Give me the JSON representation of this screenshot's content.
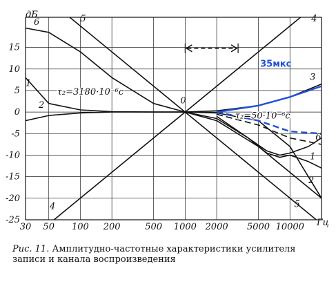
{
  "chart_data": {
    "type": "line",
    "x_scale": "log",
    "xlim": [
      30,
      20000
    ],
    "ylim": [
      -25,
      22
    ],
    "x_ticks": [
      30,
      50,
      100,
      200,
      500,
      1000,
      2000,
      5000,
      10000
    ],
    "x_tick_labels": [
      "30",
      "50",
      "100",
      "200",
      "500",
      "1000",
      "2000",
      "5000",
      "10000"
    ],
    "x_unit": "Гц",
    "y_ticks": [
      -25,
      -20,
      -15,
      -10,
      -5,
      0,
      5,
      10,
      15
    ],
    "y_tick_labels": [
      "-25",
      "-20",
      "-15",
      "-10",
      "-5",
      "0",
      "5",
      "10",
      "15"
    ],
    "y_unit": "дБ",
    "grid": true,
    "colors": {
      "axis": "#111111",
      "blue": "#1f4fd8"
    },
    "series": [
      {
        "name": "1",
        "color": "#111111",
        "dashed": false,
        "x": [
          1000,
          2000,
          4000,
          6000,
          8000,
          10000,
          15000,
          20000
        ],
        "y": [
          0,
          -1.5,
          -6,
          -9.5,
          -10.5,
          -10,
          -11.5,
          -13
        ]
      },
      {
        "name": "2",
        "color": "#111111",
        "dashed": false,
        "x": [
          30,
          50,
          100,
          200,
          500,
          1000,
          2000,
          5000,
          10000,
          15000,
          20000
        ],
        "y": [
          -2,
          -0.8,
          -0.2,
          0,
          0,
          0,
          -0.2,
          -2,
          -8,
          -15,
          -20
        ]
      },
      {
        "name": "3",
        "color": "#111111",
        "dashed": false,
        "x": [
          1000,
          2000,
          5000,
          10000,
          20000
        ],
        "y": [
          0,
          0.3,
          1.5,
          3.5,
          6.5
        ]
      },
      {
        "name": "4",
        "color": "#111111",
        "dashed": false,
        "x": [
          50,
          20000
        ],
        "y": [
          -26,
          26
        ]
      },
      {
        "name": "5",
        "color": "#111111",
        "dashed": false,
        "x": [
          50,
          20000
        ],
        "y": [
          26,
          -26
        ]
      },
      {
        "name": "6",
        "color": "#111111",
        "dashed": false,
        "x": [
          30,
          50,
          100,
          200,
          500,
          1000,
          2000,
          5000,
          10000,
          20000
        ],
        "y": [
          19.5,
          18.5,
          14,
          8,
          2,
          0,
          -2,
          -8,
          -14,
          -20
        ]
      },
      {
        "name": "",
        "color": "#111111",
        "dashed": false,
        "x": [
          30,
          50,
          100,
          200,
          500,
          1000
        ],
        "y": [
          8,
          2,
          0.5,
          0.1,
          0,
          0
        ]
      },
      {
        "name": "",
        "color": "#111111",
        "dashed": false,
        "x": [
          2000,
          4000,
          6000,
          8000,
          10000,
          15000,
          20000
        ],
        "y": [
          -1,
          -6,
          -9,
          -10,
          -9.5,
          -8,
          -6
        ]
      },
      {
        "name": "",
        "color": "#111111",
        "dashed": true,
        "x": [
          2000,
          5000,
          10000,
          20000
        ],
        "y": [
          -0.5,
          -3,
          -6,
          -7.5
        ]
      },
      {
        "name": "",
        "color": "#1f4fd8",
        "dashed": false,
        "x": [
          2000,
          5000,
          10000,
          20000
        ],
        "y": [
          0,
          1.5,
          3.5,
          6
        ]
      },
      {
        "name": "",
        "color": "#1f4fd8",
        "dashed": true,
        "x": [
          2000,
          5000,
          10000,
          20000
        ],
        "y": [
          0,
          -2,
          -4.5,
          -5
        ]
      }
    ],
    "annotations": [
      {
        "text": "дБ",
        "x": 30,
        "y": 22,
        "italic": true
      },
      {
        "text": "Гц",
        "x": 18000,
        "y": -26.3,
        "italic": true
      },
      {
        "text": "6",
        "x": 36,
        "y": 20.2,
        "italic": true
      },
      {
        "text": "5",
        "x": 100,
        "y": 21,
        "italic": true
      },
      {
        "text": "4",
        "x": 16000,
        "y": 21,
        "italic": true
      },
      {
        "text": "1",
        "x": 30,
        "y": 6,
        "italic": true
      },
      {
        "text": "2",
        "x": 40,
        "y": 1,
        "italic": true
      },
      {
        "text": "0",
        "x": 900,
        "y": 2,
        "italic": true
      },
      {
        "text": "3",
        "x": 15500,
        "y": 7.5,
        "italic": true
      },
      {
        "text": "4",
        "x": 51,
        "y": -22.5,
        "italic": true
      },
      {
        "text": "5",
        "x": 11000,
        "y": -22,
        "italic": true
      },
      {
        "text": "1",
        "x": 15500,
        "y": -11,
        "italic": true
      },
      {
        "text": "2",
        "x": 15000,
        "y": -16.5,
        "italic": true
      },
      {
        "text": "6",
        "x": 17500,
        "y": -6.5,
        "italic": true
      },
      {
        "text": "τ₂=3180·10⁻⁶c",
        "x": 60,
        "y": 4,
        "italic": true
      },
      {
        "text": "τ₂=50·10⁻⁶c",
        "x": 3000,
        "y": -1.5,
        "italic": true
      },
      {
        "text": "35мкс",
        "x": 5200,
        "y": 10.5,
        "italic": false,
        "bold": true,
        "color": "#1f4fd8"
      }
    ]
  },
  "caption": {
    "label": "Рис. 11.",
    "text": "Амплитудно-частотные характеристики усилителя записи и канала воспроизведения"
  }
}
